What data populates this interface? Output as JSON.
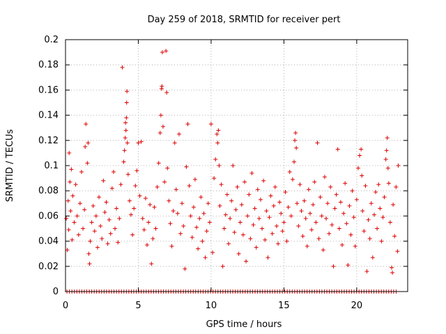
{
  "chart_data": {
    "type": "scatter",
    "title": "Day 259 of 2018, SRMTID for receiver pert",
    "xlabel": "GPS time / hours",
    "ylabel": "SRMTID / TECUs",
    "xlim": [
      0,
      23.5
    ],
    "ylim": [
      0,
      0.2
    ],
    "xticks": [
      "0",
      "5",
      "10",
      "15",
      "20"
    ],
    "yticks": [
      "0",
      "0.02",
      "0.04",
      "0.06",
      "0.08",
      "0.1",
      "0.12",
      "0.14",
      "0.16",
      "0.18",
      "0.2"
    ],
    "grid": true,
    "marker": "+",
    "color": "#dd0000",
    "series": [
      {
        "values_description": "Dense cloud of SRMTID values; baseline roughly 0.03-0.08 TECU across the day",
        "points": [
          [
            0.05,
            0.058
          ],
          [
            0.12,
            0.033
          ],
          [
            0.18,
            0.072
          ],
          [
            0.22,
            0.049
          ],
          [
            0.25,
            0.11
          ],
          [
            0.3,
            0.087
          ],
          [
            0.35,
            0.064
          ],
          [
            0.4,
            0.097
          ],
          [
            0.45,
            0.041
          ],
          [
            0.5,
            0.076
          ],
          [
            0.6,
            0.055
          ],
          [
            0.7,
            0.085
          ],
          [
            0.8,
            0.06
          ],
          [
            0.9,
            0.045
          ],
          [
            1.0,
            0.07
          ],
          [
            1.1,
            0.095
          ],
          [
            1.2,
            0.05
          ],
          [
            1.3,
            0.065
          ],
          [
            1.35,
            0.115
          ],
          [
            1.4,
            0.133
          ],
          [
            1.5,
            0.102
          ],
          [
            1.55,
            0.118
          ],
          [
            1.6,
            0.03
          ],
          [
            1.65,
            0.022
          ],
          [
            1.7,
            0.04
          ],
          [
            1.8,
            0.055
          ],
          [
            1.9,
            0.068
          ],
          [
            2.0,
            0.048
          ],
          [
            2.1,
            0.06
          ],
          [
            2.2,
            0.035
          ],
          [
            2.3,
            0.075
          ],
          [
            2.4,
            0.052
          ],
          [
            2.5,
            0.042
          ],
          [
            2.6,
            0.088
          ],
          [
            2.7,
            0.063
          ],
          [
            2.8,
            0.071
          ],
          [
            2.9,
            0.038
          ],
          [
            3.0,
            0.057
          ],
          [
            3.1,
            0.046
          ],
          [
            3.2,
            0.082
          ],
          [
            3.3,
            0.095
          ],
          [
            3.4,
            0.05
          ],
          [
            3.5,
            0.066
          ],
          [
            3.6,
            0.039
          ],
          [
            3.7,
            0.058
          ],
          [
            3.8,
            0.085
          ],
          [
            3.9,
            0.178
          ],
          [
            4.0,
            0.103
          ],
          [
            4.05,
            0.112
          ],
          [
            4.1,
            0.122
          ],
          [
            4.12,
            0.134
          ],
          [
            4.15,
            0.128
          ],
          [
            4.18,
            0.138
          ],
          [
            4.2,
            0.15
          ],
          [
            4.22,
            0.159
          ],
          [
            4.25,
            0.118
          ],
          [
            4.3,
            0.093
          ],
          [
            4.4,
            0.072
          ],
          [
            4.5,
            0.061
          ],
          [
            4.6,
            0.045
          ],
          [
            4.7,
            0.066
          ],
          [
            4.8,
            0.084
          ],
          [
            4.9,
            0.096
          ],
          [
            5.0,
            0.118
          ],
          [
            5.1,
            0.076
          ],
          [
            5.2,
            0.119
          ],
          [
            5.3,
            0.058
          ],
          [
            5.4,
            0.049
          ],
          [
            5.5,
            0.074
          ],
          [
            5.6,
            0.037
          ],
          [
            5.7,
            0.055
          ],
          [
            5.8,
            0.069
          ],
          [
            5.9,
            0.022
          ],
          [
            6.0,
            0.042
          ],
          [
            6.1,
            0.067
          ],
          [
            6.2,
            0.05
          ],
          [
            6.3,
            0.083
          ],
          [
            6.4,
            0.102
          ],
          [
            6.5,
            0.126
          ],
          [
            6.55,
            0.14
          ],
          [
            6.6,
            0.161
          ],
          [
            6.62,
            0.163
          ],
          [
            6.65,
            0.19
          ],
          [
            6.7,
            0.131
          ],
          [
            6.8,
            0.087
          ],
          [
            6.9,
            0.191
          ],
          [
            6.95,
            0.158
          ],
          [
            7.0,
            0.098
          ],
          [
            7.1,
            0.072
          ],
          [
            7.2,
            0.054
          ],
          [
            7.3,
            0.036
          ],
          [
            7.4,
            0.064
          ],
          [
            7.5,
            0.118
          ],
          [
            7.6,
            0.081
          ],
          [
            7.7,
            0.062
          ],
          [
            7.8,
            0.125
          ],
          [
            7.9,
            0.046
          ],
          [
            8.0,
            0.07
          ],
          [
            8.1,
            0.052
          ],
          [
            8.2,
            0.018
          ],
          [
            8.3,
            0.099
          ],
          [
            8.4,
            0.133
          ],
          [
            8.5,
            0.084
          ],
          [
            8.6,
            0.06
          ],
          [
            8.7,
            0.043
          ],
          [
            8.8,
            0.067
          ],
          [
            8.9,
            0.089
          ],
          [
            9.0,
            0.051
          ],
          [
            9.1,
            0.034
          ],
          [
            9.2,
            0.058
          ],
          [
            9.3,
            0.075
          ],
          [
            9.4,
            0.04
          ],
          [
            9.5,
            0.062
          ],
          [
            9.6,
            0.027
          ],
          [
            9.7,
            0.048
          ],
          [
            9.8,
            0.07
          ],
          [
            9.9,
            0.055
          ],
          [
            10.0,
            0.133
          ],
          [
            10.1,
            0.031
          ],
          [
            10.2,
            0.09
          ],
          [
            10.3,
            0.105
          ],
          [
            10.4,
            0.125
          ],
          [
            10.45,
            0.118
          ],
          [
            10.5,
            0.128
          ],
          [
            10.55,
            0.1
          ],
          [
            10.6,
            0.068
          ],
          [
            10.7,
            0.085
          ],
          [
            10.8,
            0.02
          ],
          [
            10.9,
            0.05
          ],
          [
            11.0,
            0.061
          ],
          [
            11.1,
            0.077
          ],
          [
            11.2,
            0.038
          ],
          [
            11.3,
            0.058
          ],
          [
            11.4,
            0.072
          ],
          [
            11.5,
            0.1
          ],
          [
            11.6,
            0.047
          ],
          [
            11.7,
            0.065
          ],
          [
            11.8,
            0.083
          ],
          [
            11.9,
            0.03
          ],
          [
            12.0,
            0.055
          ],
          [
            12.1,
            0.069
          ],
          [
            12.2,
            0.045
          ],
          [
            12.3,
            0.087
          ],
          [
            12.4,
            0.024
          ],
          [
            12.5,
            0.06
          ],
          [
            12.6,
            0.077
          ],
          [
            12.7,
            0.042
          ],
          [
            12.8,
            0.094
          ],
          [
            12.9,
            0.053
          ],
          [
            13.0,
            0.066
          ],
          [
            13.1,
            0.035
          ],
          [
            13.2,
            0.081
          ],
          [
            13.3,
            0.058
          ],
          [
            13.4,
            0.073
          ],
          [
            13.5,
            0.05
          ],
          [
            13.6,
            0.088
          ],
          [
            13.7,
            0.041
          ],
          [
            13.8,
            0.064
          ],
          [
            13.9,
            0.027
          ],
          [
            14.0,
            0.059
          ],
          [
            14.1,
            0.076
          ],
          [
            14.2,
            0.046
          ],
          [
            14.3,
            0.068
          ],
          [
            14.4,
            0.083
          ],
          [
            14.5,
            0.052
          ],
          [
            14.6,
            0.038
          ],
          [
            14.7,
            0.071
          ],
          [
            14.8,
            0.062
          ],
          [
            14.9,
            0.048
          ],
          [
            15.0,
            0.055
          ],
          [
            15.1,
            0.079
          ],
          [
            15.2,
            0.04
          ],
          [
            15.3,
            0.067
          ],
          [
            15.4,
            0.095
          ],
          [
            15.5,
            0.06
          ],
          [
            15.6,
            0.089
          ],
          [
            15.7,
            0.103
          ],
          [
            15.75,
            0.12
          ],
          [
            15.8,
            0.126
          ],
          [
            15.85,
            0.114
          ],
          [
            15.9,
            0.07
          ],
          [
            16.0,
            0.052
          ],
          [
            16.1,
            0.085
          ],
          [
            16.2,
            0.064
          ],
          [
            16.3,
            0.044
          ],
          [
            16.4,
            0.072
          ],
          [
            16.5,
            0.058
          ],
          [
            16.6,
            0.036
          ],
          [
            16.7,
            0.081
          ],
          [
            16.8,
            0.062
          ],
          [
            16.9,
            0.049
          ],
          [
            17.0,
            0.069
          ],
          [
            17.1,
            0.087
          ],
          [
            17.2,
            0.055
          ],
          [
            17.3,
            0.118
          ],
          [
            17.4,
            0.042
          ],
          [
            17.5,
            0.075
          ],
          [
            17.6,
            0.06
          ],
          [
            17.7,
            0.033
          ],
          [
            17.8,
            0.091
          ],
          [
            17.9,
            0.058
          ],
          [
            18.0,
            0.07
          ],
          [
            18.1,
            0.046
          ],
          [
            18.2,
            0.083
          ],
          [
            18.3,
            0.053
          ],
          [
            18.4,
            0.02
          ],
          [
            18.5,
            0.066
          ],
          [
            18.6,
            0.077
          ],
          [
            18.7,
            0.113
          ],
          [
            18.8,
            0.05
          ],
          [
            18.9,
            0.071
          ],
          [
            19.0,
            0.037
          ],
          [
            19.1,
            0.062
          ],
          [
            19.2,
            0.086
          ],
          [
            19.3,
            0.054
          ],
          [
            19.4,
            0.021
          ],
          [
            19.5,
            0.068
          ],
          [
            19.6,
            0.045
          ],
          [
            19.7,
            0.08
          ],
          [
            19.8,
            0.059
          ],
          [
            19.9,
            0.036
          ],
          [
            20.0,
            0.073
          ],
          [
            20.1,
            0.098
          ],
          [
            20.2,
            0.108
          ],
          [
            20.3,
            0.113
          ],
          [
            20.35,
            0.092
          ],
          [
            20.4,
            0.064
          ],
          [
            20.5,
            0.048
          ],
          [
            20.6,
            0.084
          ],
          [
            20.7,
            0.016
          ],
          [
            20.8,
            0.057
          ],
          [
            20.9,
            0.042
          ],
          [
            21.0,
            0.07
          ],
          [
            21.1,
            0.027
          ],
          [
            21.2,
            0.061
          ],
          [
            21.3,
            0.079
          ],
          [
            21.4,
            0.05
          ],
          [
            21.5,
            0.085
          ],
          [
            21.6,
            0.066
          ],
          [
            21.7,
            0.04
          ],
          [
            21.8,
            0.059
          ],
          [
            21.9,
            0.075
          ],
          [
            22.0,
            0.105
          ],
          [
            22.05,
            0.112
          ],
          [
            22.1,
            0.122
          ],
          [
            22.15,
            0.098
          ],
          [
            22.2,
            0.086
          ],
          [
            22.3,
            0.055
          ],
          [
            22.4,
            0.019
          ],
          [
            22.45,
            0.015
          ],
          [
            22.5,
            0.069
          ],
          [
            22.6,
            0.044
          ],
          [
            22.7,
            0.083
          ],
          [
            22.8,
            0.032
          ],
          [
            22.85,
            0.1
          ]
        ]
      }
    ]
  }
}
